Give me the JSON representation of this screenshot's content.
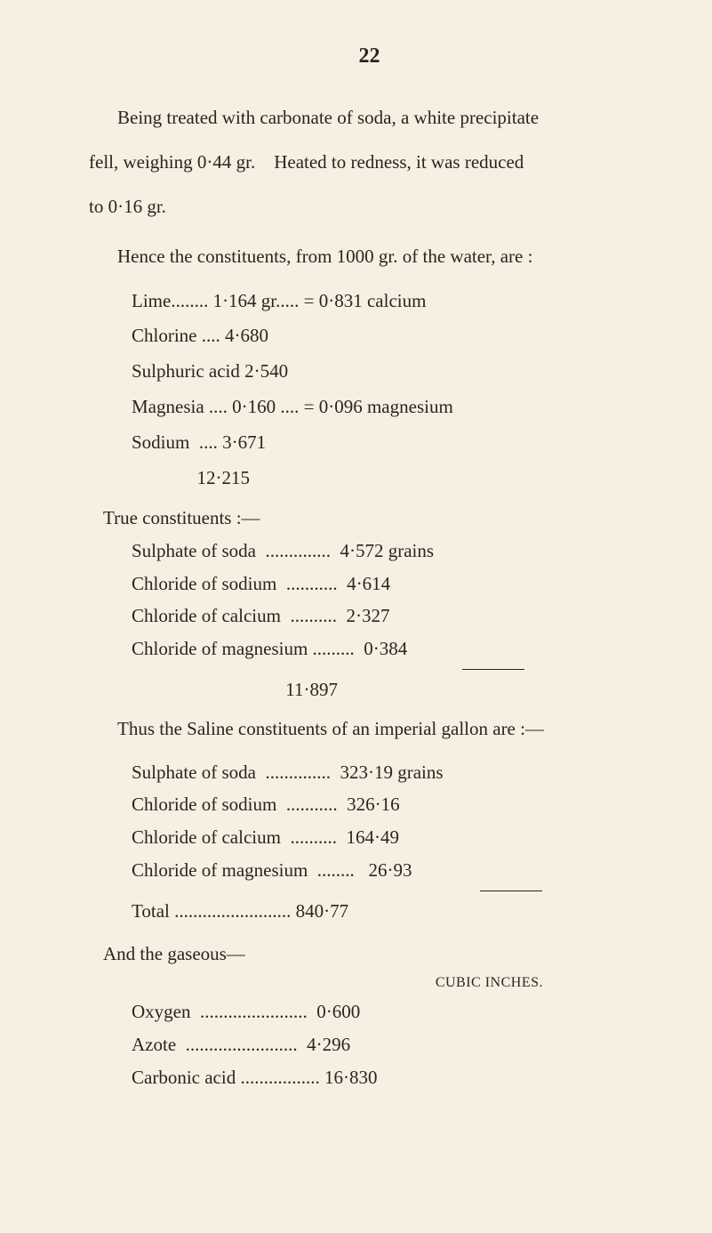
{
  "pageNumber": "22",
  "intro": {
    "line1": "Being treated with carbonate of soda, a white precipitate",
    "line2": "fell, weighing 0·44 gr. Heated to redness, it was reduced",
    "line3": "to 0·16 gr."
  },
  "henceHead": "Hence the constituents, from 1000 gr. of the water, are :",
  "constituents1": {
    "lime": "Lime........ 1·164 gr..... = 0·831 calcium",
    "chlorine": "Chlorine .... 4·680",
    "sulphuric": "Sulphuric acid 2·540",
    "magnesia": "Magnesia .... 0·160 .... = 0·096 magnesium",
    "sodium": "Sodium  .... 3·671",
    "total": "              12·215"
  },
  "trueHead": "True constituents :—",
  "trueRows": {
    "sulphateSoda": "Sulphate of soda  ..............  4·572 grains",
    "chlorideSodium": "Chloride of sodium  ...........  4·614",
    "chlorideCalcium": "Chloride of calcium  ..........  2·327",
    "chlorideMagn": "Chloride of magnesium .........  0·384",
    "total": "                                 11·897"
  },
  "salineHead": "Thus the Saline constituents of an imperial gallon are :—",
  "salineRows": {
    "sulphateSoda": "Sulphate of soda  ..............  323·19 grains",
    "chlorideSodium": "Chloride of sodium  ...........  326·16",
    "chlorideCalcium": "Chloride of calcium  ..........  164·49",
    "chlorideMagn": "Chloride of magnesium  ........   26·93",
    "total": "Total ......................... 840·77"
  },
  "gaseousHead": "And the gaseous—",
  "gaseousUnit": "CUBIC INCHES.",
  "gaseousRows": {
    "oxygen": "Oxygen  .......................  0·600",
    "azote": "Azote  ........................  4·296",
    "carbonic": "Carbonic acid ................. 16·830"
  }
}
